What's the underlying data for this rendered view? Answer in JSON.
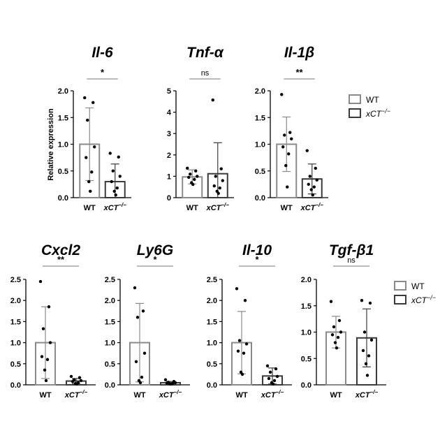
{
  "colors": {
    "wt": "#8a8a8a",
    "ko": "#3a3a3a",
    "axis": "#000000",
    "sig": "#777777"
  },
  "ylabel": "Relative expression",
  "legends": [
    {
      "items": [
        {
          "label": "WT",
          "color": "#8a8a8a"
        },
        {
          "label": "xCT",
          "sup": "−/−",
          "color": "#3a3a3a"
        }
      ]
    },
    {
      "items": [
        {
          "label": "WT",
          "color": "#8a8a8a"
        },
        {
          "label": "xCT",
          "sup": "−/−",
          "color": "#3a3a3a"
        }
      ]
    }
  ],
  "chart_data": [
    {
      "type": "bar",
      "title": "Il-6",
      "ylim": [
        0,
        2
      ],
      "yticks": [
        "0.0",
        "0.5",
        "1.0",
        "1.5",
        "2.0"
      ],
      "categories": [
        {
          "label": "WT"
        },
        {
          "label": "xCT",
          "sup": "−/−"
        }
      ],
      "values": [
        1.0,
        0.3
      ],
      "sd": [
        0.68,
        0.33
      ],
      "significance": "*",
      "points": [
        [
          1.87,
          1.78,
          1.45,
          0.95,
          0.75,
          0.48,
          0.3,
          0.12
        ],
        [
          0.83,
          0.76,
          0.5,
          0.4,
          0.3,
          0.18,
          0.12,
          0.05
        ]
      ]
    },
    {
      "type": "bar",
      "title": "Tnf-α",
      "ylim": [
        0,
        5
      ],
      "yticks": [
        "0",
        "1",
        "2",
        "3",
        "4",
        "5"
      ],
      "categories": [
        {
          "label": "WT"
        },
        {
          "label": "xCT",
          "sup": "−/−"
        }
      ],
      "values": [
        0.97,
        1.12
      ],
      "sd": [
        0.33,
        1.45
      ],
      "significance": "ns",
      "points": [
        [
          1.38,
          1.25,
          1.1,
          1.0,
          0.95,
          0.85,
          0.7,
          0.62
        ],
        [
          4.57,
          1.35,
          1.0,
          0.8,
          0.55,
          0.45,
          0.3,
          0.2
        ]
      ]
    },
    {
      "type": "bar",
      "title": "Il-1β",
      "ylim": [
        0,
        2
      ],
      "yticks": [
        "0.0",
        "0.5",
        "1.0",
        "1.5",
        "2.0"
      ],
      "categories": [
        {
          "label": "WT"
        },
        {
          "label": "xCT",
          "sup": "−/−"
        }
      ],
      "values": [
        1.0,
        0.35
      ],
      "sd": [
        0.51,
        0.28
      ],
      "significance": "**",
      "points": [
        [
          1.93,
          1.22,
          1.17,
          1.1,
          0.95,
          0.82,
          0.6,
          0.2
        ],
        [
          0.88,
          0.55,
          0.4,
          0.33,
          0.25,
          0.2,
          0.15,
          0.05
        ]
      ]
    },
    {
      "type": "bar",
      "title": "Cxcl2",
      "ylim": [
        0,
        2.5
      ],
      "yticks": [
        "0.0",
        "0.5",
        "1.0",
        "1.5",
        "2.0",
        "2.5"
      ],
      "categories": [
        {
          "label": "WT"
        },
        {
          "label": "xCT",
          "sup": "−/−"
        }
      ],
      "values": [
        1.0,
        0.09
      ],
      "sd": [
        0.85,
        0.06
      ],
      "significance": "**",
      "points": [
        [
          2.45,
          1.85,
          1.33,
          1.0,
          0.67,
          0.6,
          0.35,
          0.1
        ],
        [
          0.2,
          0.17,
          0.12,
          0.1,
          0.08,
          0.05,
          0.03,
          0.02
        ]
      ]
    },
    {
      "type": "bar",
      "title": "Ly6G",
      "ylim": [
        0,
        2.5
      ],
      "yticks": [
        "0.0",
        "0.5",
        "1.0",
        "1.5",
        "2.0",
        "2.5"
      ],
      "categories": [
        {
          "label": "WT"
        },
        {
          "label": "xCT",
          "sup": "−/−"
        }
      ],
      "values": [
        1.0,
        0.05
      ],
      "sd": [
        0.93,
        0.03
      ],
      "significance": "*",
      "points": [
        [
          2.3,
          1.75,
          1.6,
          0.75,
          0.55,
          0.18,
          0.1,
          0.05
        ],
        [
          0.12,
          0.08,
          0.06,
          0.05,
          0.04,
          0.03,
          0.02,
          0.02
        ]
      ]
    },
    {
      "type": "bar",
      "title": "Il-10",
      "ylim": [
        0,
        2.5
      ],
      "yticks": [
        "0.0",
        "0.5",
        "1.0",
        "1.5",
        "2.0",
        "2.5"
      ],
      "categories": [
        {
          "label": "WT"
        },
        {
          "label": "xCT",
          "sup": "−/−"
        }
      ],
      "values": [
        1.0,
        0.21
      ],
      "sd": [
        0.74,
        0.19
      ],
      "significance": "*",
      "points": [
        [
          2.28,
          2.0,
          1.05,
          0.97,
          0.8,
          0.75,
          0.3,
          0.25
        ],
        [
          0.45,
          0.38,
          0.3,
          0.2,
          0.15,
          0.1,
          0.05,
          0.02
        ]
      ]
    },
    {
      "type": "bar",
      "title": "Tgf-β1",
      "ylim": [
        0,
        2
      ],
      "yticks": [
        "0.0",
        "0.5",
        "1.0",
        "1.5",
        "2.0"
      ],
      "categories": [
        {
          "label": "WT"
        },
        {
          "label": "xCT",
          "sup": "−/−"
        }
      ],
      "values": [
        1.0,
        0.89
      ],
      "sd": [
        0.3,
        0.55
      ],
      "significance": "ns",
      "points": [
        [
          1.58,
          1.22,
          1.1,
          1.0,
          0.95,
          0.9,
          0.8,
          0.7
        ],
        [
          1.6,
          1.55,
          1.0,
          0.85,
          0.65,
          0.55,
          0.4,
          0.18
        ]
      ]
    }
  ]
}
